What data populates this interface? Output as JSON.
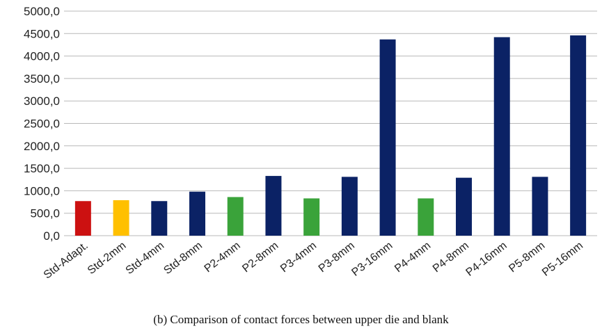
{
  "caption": "(b) Comparison of contact forces between upper die and blank",
  "chart_data": {
    "type": "bar",
    "categories": [
      "Std-Adapt.",
      "Std-2mm",
      "Std-4mm",
      "Std-8mm",
      "P2-4mm",
      "P2-8mm",
      "P3-4mm",
      "P3-8mm",
      "P3-16mm",
      "P4-4mm",
      "P4-8mm",
      "P4-16mm",
      "P5-8mm",
      "P5-16mm"
    ],
    "values": [
      770,
      790,
      770,
      980,
      860,
      1330,
      830,
      1310,
      4370,
      830,
      1290,
      4420,
      1310,
      4460
    ],
    "colors": [
      "#cc1111",
      "#ffc000",
      "#0b2265",
      "#0b2265",
      "#3aa33a",
      "#0b2265",
      "#3aa33a",
      "#0b2265",
      "#0b2265",
      "#3aa33a",
      "#0b2265",
      "#0b2265",
      "#0b2265",
      "#0b2265"
    ],
    "yticks": [
      "0,0",
      "500,0",
      "1000,0",
      "1500,0",
      "2000,0",
      "2500,0",
      "3000,0",
      "3500,0",
      "4000,0",
      "4500,0",
      "5000,0"
    ],
    "ylim": [
      0,
      5000
    ],
    "grid": true,
    "legend": "none"
  }
}
